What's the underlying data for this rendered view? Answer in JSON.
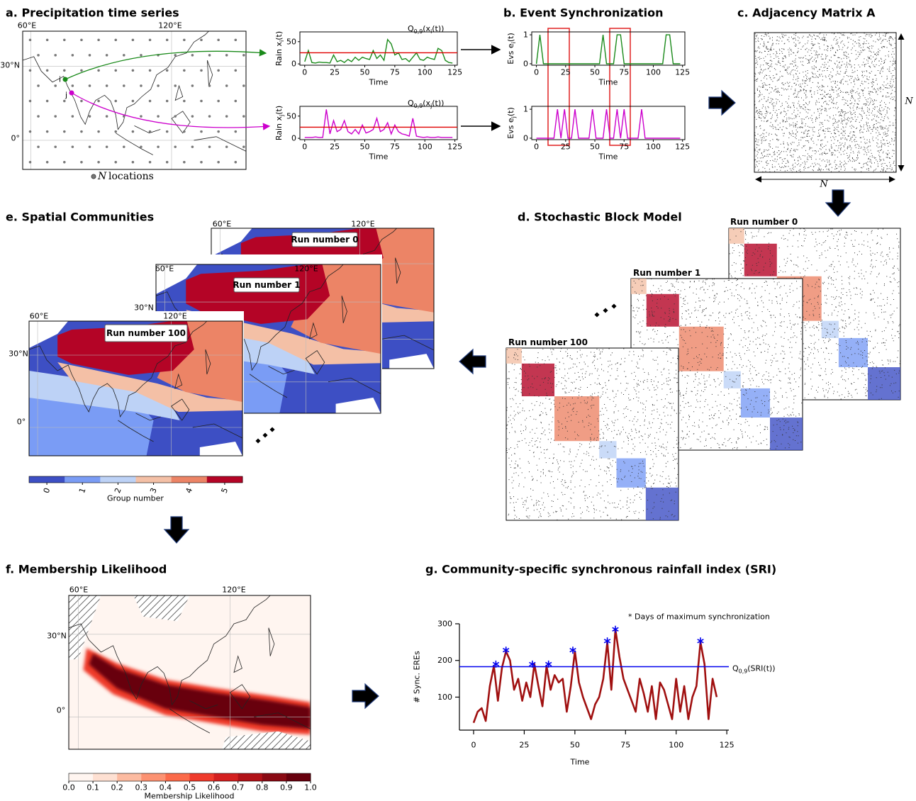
{
  "panels": {
    "a": {
      "title": "a. Precipitation time series",
      "map": {
        "lon": [
          "60°E",
          "120°E"
        ],
        "lat": [
          "30°N",
          "0°"
        ],
        "i": "i",
        "j": "j",
        "legend_symbol": "N",
        "legend": "locations"
      },
      "x": [
        0,
        3,
        6,
        9,
        12,
        15,
        18,
        21,
        24,
        27,
        30,
        33,
        36,
        39,
        42,
        45,
        48,
        51,
        54,
        57,
        60,
        63,
        66,
        69,
        72,
        75,
        78,
        81,
        84,
        87,
        90,
        93,
        96,
        99,
        102,
        105,
        108,
        111,
        114,
        117,
        120,
        123
      ],
      "plots": [
        {
          "ylabel": [
            "Rain x",
            "i",
            "(t)"
          ],
          "threshold": 25,
          "threshold_label": [
            "Q",
            "0,9",
            "(x",
            "i",
            "(t))"
          ],
          "color": "#1a8a1a",
          "values": [
            5,
            30,
            3,
            2,
            4,
            3,
            3,
            2,
            20,
            5,
            8,
            3,
            10,
            5,
            15,
            8,
            15,
            12,
            10,
            30,
            12,
            20,
            8,
            55,
            45,
            20,
            25,
            10,
            12,
            5,
            15,
            25,
            10,
            8,
            15,
            12,
            10,
            35,
            30,
            8,
            3,
            2
          ]
        },
        {
          "ylabel": [
            "Rain x",
            "j",
            "(t)"
          ],
          "threshold": 25,
          "threshold_label": [
            "Q",
            "0,9",
            "(x",
            "j",
            "(t))"
          ],
          "color": "#cc00cc",
          "values": [
            2,
            2,
            2,
            3,
            2,
            2,
            65,
            10,
            40,
            15,
            20,
            40,
            15,
            10,
            20,
            10,
            30,
            12,
            15,
            20,
            45,
            15,
            20,
            35,
            10,
            30,
            15,
            10,
            8,
            5,
            45,
            5,
            3,
            2,
            3,
            2,
            2,
            3,
            2,
            2,
            2,
            2
          ]
        }
      ],
      "xlabel": "Time",
      "xticks": [
        0,
        25,
        50,
        75,
        100,
        125
      ],
      "yticks": [
        0,
        50
      ],
      "xlim": [
        -4,
        127
      ],
      "ylim": [
        -3,
        72
      ]
    },
    "b": {
      "title": "b. Event Synchronization",
      "plots": [
        {
          "ylabel": [
            "Evs e",
            "i",
            "(t)"
          ],
          "color": "#1a8a1a",
          "values": [
            0,
            1,
            0,
            0,
            0,
            0,
            0,
            0,
            0,
            0,
            0,
            0,
            0,
            0,
            0,
            0,
            0,
            0,
            0,
            1,
            0,
            0,
            0,
            1,
            1,
            0,
            0,
            0,
            0,
            0,
            0,
            0,
            0,
            0,
            0,
            0,
            0,
            1,
            1,
            0,
            0,
            0
          ]
        },
        {
          "ylabel": [
            "Evs e",
            "j",
            "(t)"
          ],
          "color": "#cc00cc",
          "values": [
            0,
            0,
            0,
            0,
            0,
            0,
            1,
            0,
            1,
            0,
            0,
            1,
            0,
            0,
            0,
            0,
            1,
            0,
            0,
            0,
            1,
            0,
            0,
            1,
            0,
            1,
            0,
            0,
            0,
            0,
            1,
            0,
            0,
            0,
            0,
            0,
            0,
            0,
            0,
            0,
            0,
            0
          ]
        }
      ],
      "xlabel": "Time",
      "xticks": [
        0,
        25,
        50,
        75,
        100,
        125
      ],
      "yticks": [
        0,
        1
      ],
      "xlim": [
        -4,
        127
      ],
      "ylim": [
        -0.05,
        1.1
      ]
    },
    "c": {
      "title": "c. Adjacency Matrix A",
      "size_label": "N"
    },
    "d": {
      "title": "d. Stochastic Block Model",
      "runs": [
        "Run number 0",
        "Run number 1",
        "Run number 100"
      ]
    },
    "e": {
      "title": "e. Spatial Communities",
      "maps": [
        {
          "run": "Run number 0",
          "lon": [
            "60°E",
            "120°E"
          ],
          "lat": []
        },
        {
          "run": "Run number 1",
          "lon": [
            "60°E",
            "120°E"
          ],
          "lat": [
            "30°N"
          ]
        },
        {
          "run": "Run number 100",
          "lon": [
            "60°E",
            "120°E"
          ],
          "lat": [
            "30°N",
            "0°"
          ]
        }
      ],
      "colorbar": {
        "ticks": [
          0,
          1,
          2,
          3,
          4,
          5
        ],
        "colors": [
          "#3d4fc4",
          "#7a9cf5",
          "#bdd2f6",
          "#f4c0a6",
          "#ec8466",
          "#b40426"
        ],
        "label": "Group number"
      }
    },
    "f": {
      "title": "f. Membership Likelihood",
      "lon": [
        "60°E",
        "120°E"
      ],
      "lat": [
        "30°N",
        "0°"
      ],
      "colorbar": {
        "ticks": [
          {
            "value": 0,
            "label": "0.0"
          },
          0.1,
          0.2,
          0.3,
          0.4,
          0.5,
          0.6,
          0.7,
          0.8,
          0.9,
          {
            "value": 1,
            "label": "1.0"
          }
        ],
        "colors": [
          "#fff5f0",
          "#fee0d2",
          "#fcbba1",
          "#fc9272",
          "#fb6a4a",
          "#ef3b2c",
          "#d42020",
          "#b11218",
          "#8a0a14",
          "#67000d"
        ],
        "label": "Membership Likelihood"
      }
    },
    "g": {
      "title": "g. Community-specific synchronous rainfall index (SRI)",
      "x": [
        0,
        2,
        4,
        6,
        8,
        10,
        12,
        14,
        16,
        18,
        20,
        22,
        24,
        26,
        28,
        30,
        32,
        34,
        36,
        38,
        40,
        42,
        44,
        46,
        48,
        50,
        52,
        54,
        56,
        58,
        60,
        62,
        64,
        66,
        68,
        70,
        72,
        74,
        76,
        78,
        80,
        82,
        84,
        86,
        88,
        90,
        92,
        94,
        96,
        98,
        100,
        102,
        104,
        106,
        108,
        110,
        112,
        114,
        116,
        118,
        120
      ],
      "values": [
        30,
        60,
        70,
        35,
        130,
        185,
        90,
        180,
        225,
        200,
        120,
        150,
        90,
        140,
        100,
        190,
        130,
        75,
        185,
        120,
        160,
        140,
        150,
        60,
        130,
        225,
        140,
        100,
        70,
        40,
        80,
        100,
        150,
        250,
        120,
        285,
        210,
        150,
        120,
        90,
        60,
        150,
        110,
        60,
        130,
        40,
        140,
        120,
        80,
        40,
        150,
        60,
        130,
        40,
        100,
        130,
        250,
        190,
        40,
        150,
        100
      ],
      "color": "#a01010",
      "threshold": 183,
      "threshold_color": "#0000ee",
      "threshold_label": [
        "Q",
        "0,9",
        "(SRI(t))"
      ],
      "stars_x": [
        11,
        16,
        29,
        37,
        49,
        66,
        70,
        112
      ],
      "stars_y": [
        190,
        228,
        190,
        190,
        228,
        253,
        285,
        253
      ],
      "star_label": "* Days of maximum synchronization",
      "xlabel": "Time",
      "ylabel": "# Sync. EREs",
      "xticks": [
        0,
        25,
        50,
        75,
        100,
        125
      ],
      "yticks": [
        100,
        200,
        300
      ],
      "xlim": [
        -7,
        126
      ],
      "ylim": [
        10,
        300
      ]
    }
  }
}
